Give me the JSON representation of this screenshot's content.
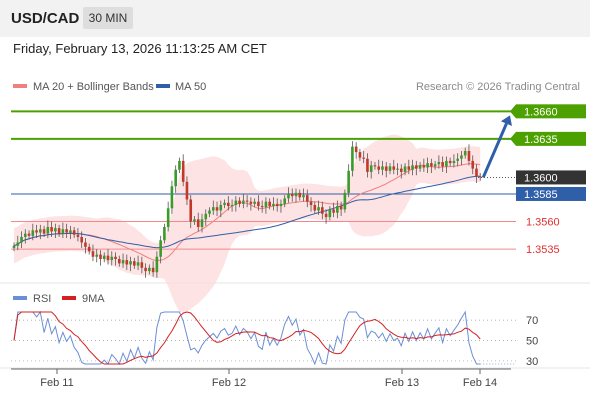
{
  "header": {
    "symbol": "USD/CAD",
    "timeframe": "30 MIN"
  },
  "datetime": "Friday, February 13, 2026 11:13:25 AM CET",
  "legend": {
    "ma20_label": "MA 20 + Bollinger Bands",
    "ma50_label": "MA 50",
    "credit": "Research © 2026 Trading Central"
  },
  "colors": {
    "resistance": "#4ca000",
    "support": "#e03030",
    "price_box": "#333333",
    "ma50": "#2f5fa8",
    "arrow": "#2f5fa8"
  },
  "chart_data": [
    {
      "type": "candlestick",
      "x_ticks": [
        "Feb 11",
        "Feb 12",
        "Feb 13",
        "Feb 14"
      ],
      "y_range": [
        1.3516,
        1.3673
      ],
      "price_levels": [
        {
          "label": "1.3660",
          "value": 1.366,
          "kind": "resistance"
        },
        {
          "label": "1.3635",
          "value": 1.3635,
          "kind": "resistance"
        },
        {
          "label": "1.3600",
          "value": 1.36,
          "kind": "last-price"
        },
        {
          "label": "1.3585",
          "value": 1.3585,
          "kind": "pivot"
        },
        {
          "label": "1.3560",
          "value": 1.356,
          "kind": "support"
        },
        {
          "label": "1.3535",
          "value": 1.3535,
          "kind": "support"
        }
      ],
      "close": [
        1.3538,
        1.3541,
        1.3546,
        1.3549,
        1.3547,
        1.3552,
        1.355,
        1.3553,
        1.3549,
        1.3555,
        1.3551,
        1.3554,
        1.3549,
        1.3553,
        1.355,
        1.3552,
        1.3548,
        1.3546,
        1.3541,
        1.3537,
        1.3533,
        1.3528,
        1.353,
        1.3526,
        1.3529,
        1.3525,
        1.3528,
        1.3526,
        1.3522,
        1.3525,
        1.3521,
        1.3524,
        1.352,
        1.3523,
        1.3518,
        1.3515,
        1.3518,
        1.3514,
        1.3528,
        1.3543,
        1.3555,
        1.3572,
        1.3592,
        1.3607,
        1.3615,
        1.3596,
        1.358,
        1.356,
        1.3562,
        1.3555,
        1.3562,
        1.3567,
        1.357,
        1.3573,
        1.357,
        1.3575,
        1.3577,
        1.3574,
        1.3575,
        1.3579,
        1.3576,
        1.3579,
        1.3578,
        1.3576,
        1.3578,
        1.3574,
        1.3573,
        1.3578,
        1.3574,
        1.3576,
        1.3574,
        1.3576,
        1.3581,
        1.3585,
        1.3583,
        1.3586,
        1.3582,
        1.3584,
        1.3578,
        1.3575,
        1.357,
        1.3573,
        1.3567,
        1.3564,
        1.3571,
        1.3568,
        1.3574,
        1.3571,
        1.3586,
        1.3606,
        1.3628,
        1.3623,
        1.3618,
        1.3617,
        1.3605,
        1.3611,
        1.361,
        1.3607,
        1.361,
        1.3606,
        1.361,
        1.3607,
        1.3608,
        1.3605,
        1.361,
        1.3607,
        1.3611,
        1.3608,
        1.3611,
        1.3609,
        1.3613,
        1.361,
        1.3612,
        1.3614,
        1.361,
        1.3615,
        1.3613,
        1.3615,
        1.3617,
        1.362,
        1.3624,
        1.3615,
        1.3608,
        1.3601,
        1.36
      ],
      "series": [
        {
          "name": "MA 20 + Bollinger Bands"
        },
        {
          "name": "MA 50"
        }
      ],
      "forecast": {
        "from": 1.36,
        "to": 1.366
      }
    },
    {
      "type": "line",
      "legend": [
        "RSI",
        "9MA"
      ],
      "y_ticks": [
        "70",
        "50",
        "30"
      ],
      "y_range": [
        25,
        80
      ],
      "series": [
        {
          "name": "RSI",
          "color": "#3366cc"
        },
        {
          "name": "9MA",
          "color": "#d32020"
        }
      ]
    }
  ]
}
